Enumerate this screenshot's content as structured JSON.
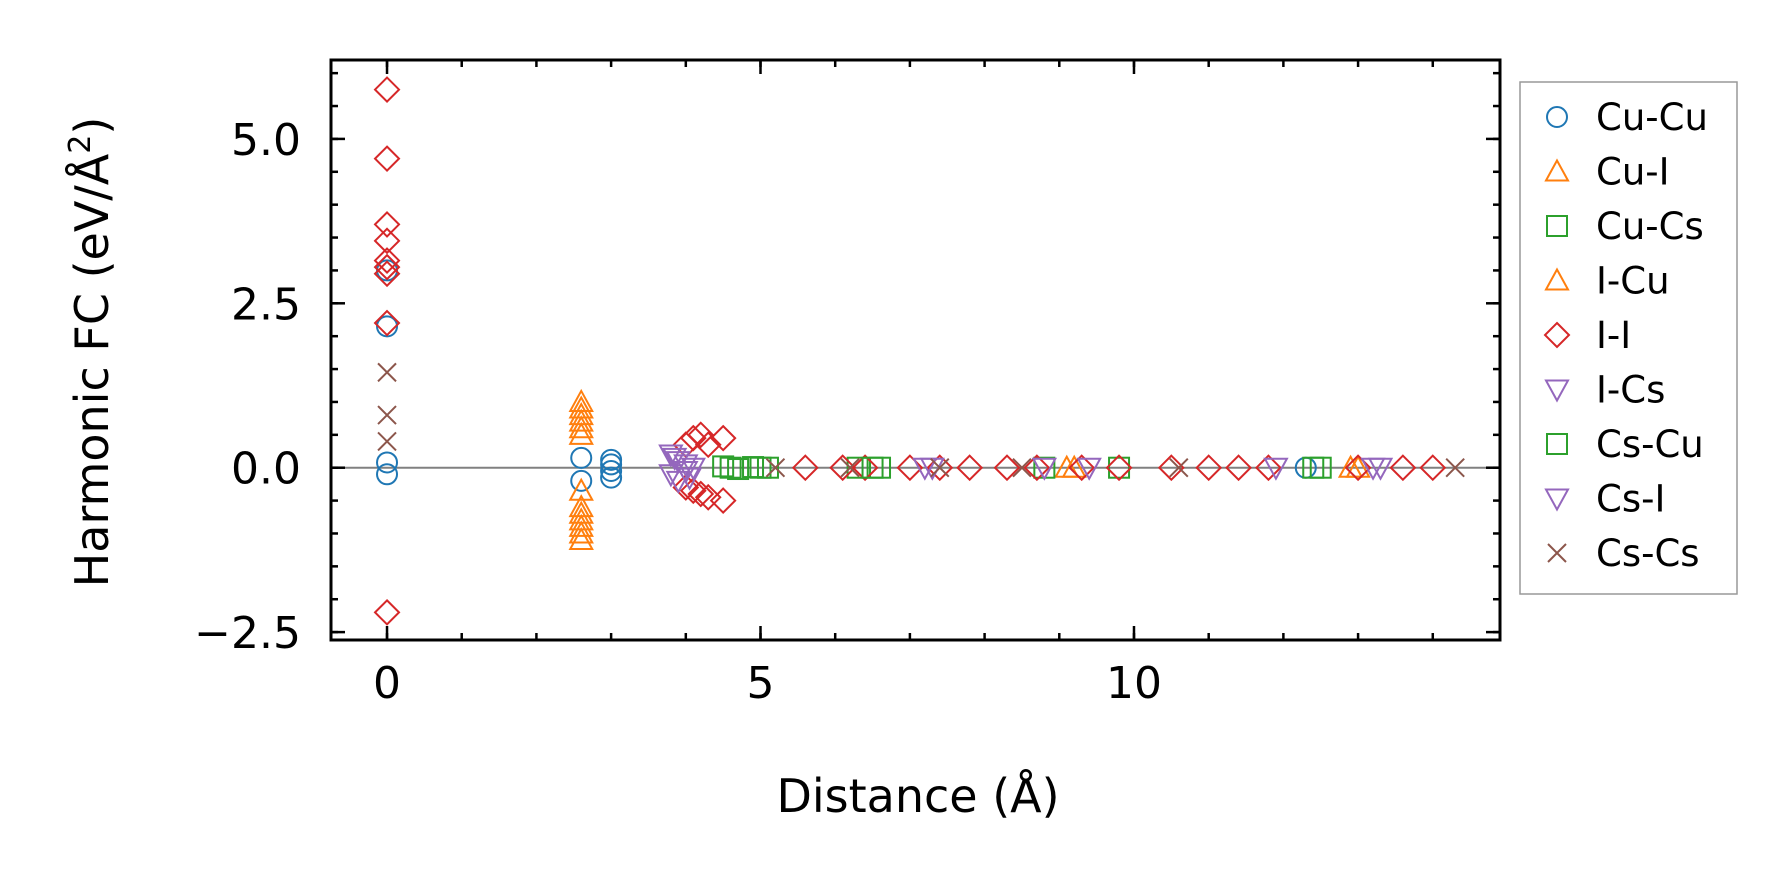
{
  "chart_data": {
    "type": "scatter",
    "title": "",
    "xlabel": "Distance (Å)",
    "ylabel": "Harmonic FC (eV/Å²)",
    "ylabel_main": "Harmonic FC (eV/Å",
    "ylabel_sup": "2",
    "ylabel_end": ")",
    "xlim": [
      -0.75,
      14.9
    ],
    "ylim": [
      -2.62,
      6.2
    ],
    "xticks": [
      0,
      5,
      10
    ],
    "xtick_labels": [
      "0",
      "5",
      "10"
    ],
    "yticks": [
      -2.5,
      0.0,
      2.5,
      5.0
    ],
    "ytick_labels": [
      "−2.5",
      "0.0",
      "2.5",
      "5.0"
    ],
    "x_minor_step": 1,
    "y_minor_step": 0.5,
    "zero_line": true,
    "grid": false,
    "legend_position": "outside-right",
    "series": [
      {
        "name": "Cu-Cu",
        "marker": "circle",
        "color": "#1f77b4",
        "x": [
          0,
          0,
          0,
          0,
          2.6,
          2.6,
          3.0,
          3.0,
          3.0,
          3.0,
          12.3
        ],
        "y": [
          3.0,
          2.15,
          0.08,
          -0.1,
          0.15,
          -0.2,
          0.12,
          0.05,
          -0.05,
          -0.15,
          0.0
        ]
      },
      {
        "name": "Cu-I",
        "marker": "triangle-up",
        "color": "#ff7f0e",
        "x": [
          2.6,
          2.6,
          2.6,
          2.6,
          2.6,
          2.6,
          2.6,
          2.6,
          2.6,
          2.6,
          2.6,
          2.6,
          2.6,
          9.1,
          12.9
        ],
        "y": [
          1.0,
          0.9,
          0.8,
          0.7,
          0.6,
          0.5,
          -0.35,
          -0.6,
          -0.7,
          -0.8,
          -0.9,
          -1.0,
          -1.1,
          0.0,
          0.0
        ]
      },
      {
        "name": "Cu-Cs",
        "marker": "square",
        "color": "#2ca02c",
        "x": [
          4.5,
          4.7,
          4.9,
          5.1,
          6.3,
          6.6,
          8.8,
          9.8,
          12.4
        ],
        "y": [
          0.02,
          -0.02,
          0.01,
          0.0,
          0.0,
          0.0,
          0.0,
          0.0,
          0.0
        ]
      },
      {
        "name": "I-Cu",
        "marker": "triangle-up",
        "color": "#ff7f0e",
        "x": [
          9.2,
          13.0
        ],
        "y": [
          0.0,
          0.0
        ]
      },
      {
        "name": "I-I",
        "marker": "diamond",
        "color": "#d62728",
        "x": [
          0,
          0,
          0,
          0,
          0,
          0,
          0,
          0,
          0,
          4.0,
          4.1,
          4.2,
          4.3,
          4.5,
          4.0,
          4.1,
          4.2,
          4.3,
          4.5,
          5.6,
          6.1,
          6.4,
          7.0,
          7.4,
          7.8,
          8.3,
          8.7,
          9.3,
          9.8,
          10.5,
          11.0,
          11.4,
          11.8,
          13.0,
          13.6,
          14.0
        ],
        "y": [
          5.75,
          4.7,
          3.7,
          3.45,
          3.15,
          3.05,
          2.95,
          2.2,
          -2.2,
          0.35,
          0.45,
          0.5,
          0.35,
          0.45,
          -0.3,
          -0.35,
          -0.4,
          -0.45,
          -0.5,
          0.0,
          0.0,
          0.0,
          0.0,
          0.0,
          0.0,
          0.0,
          0.0,
          0.0,
          0.0,
          0.0,
          0.0,
          0.0,
          0.0,
          0.0,
          0.0,
          0.0
        ]
      },
      {
        "name": "I-Cs",
        "marker": "triangle-down",
        "color": "#9467bd",
        "x": [
          3.8,
          3.9,
          4.0,
          4.1,
          3.8,
          3.9,
          4.0,
          7.2,
          8.8,
          11.9,
          13.2
        ],
        "y": [
          0.2,
          0.1,
          0.05,
          0.0,
          -0.1,
          -0.2,
          -0.05,
          0.0,
          0.0,
          0.0,
          0.0
        ]
      },
      {
        "name": "Cs-Cu",
        "marker": "square",
        "color": "#2ca02c",
        "x": [
          4.6,
          5.0,
          6.5,
          12.5
        ],
        "y": [
          0.0,
          0.0,
          0.0,
          0.0
        ]
      },
      {
        "name": "Cs-I",
        "marker": "triangle-down",
        "color": "#9467bd",
        "x": [
          3.85,
          4.05,
          7.3,
          9.4,
          13.3
        ],
        "y": [
          0.15,
          -0.15,
          0.0,
          0.0,
          0.0
        ]
      },
      {
        "name": "Cs-Cs",
        "marker": "x",
        "color": "#8c564b",
        "x": [
          0,
          0,
          0,
          5.2,
          6.2,
          7.4,
          8.5,
          10.6,
          14.3
        ],
        "y": [
          1.45,
          0.8,
          0.4,
          0.0,
          0.0,
          0.0,
          0.0,
          0.0,
          0.0
        ]
      }
    ]
  }
}
